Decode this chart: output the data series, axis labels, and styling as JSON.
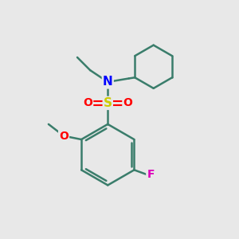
{
  "background_color": "#e8e8e8",
  "atom_colors": {
    "C": "#3a7d6b",
    "N": "#0000ff",
    "S": "#cccc00",
    "O": "#ff0000",
    "F": "#dd00bb",
    "H": "#000000"
  },
  "bond_color": "#3a7d6b",
  "figsize": [
    3.0,
    3.0
  ],
  "dpi": 100
}
